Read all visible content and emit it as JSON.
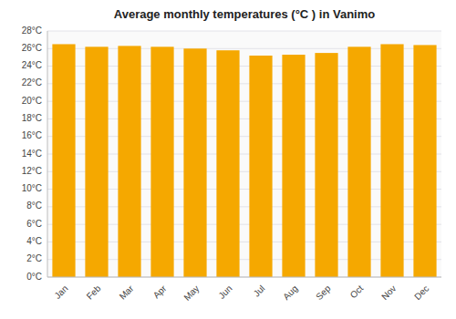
{
  "chart_data": {
    "type": "bar",
    "title": "Average monthly temperatures (°C ) in Vanimo",
    "categories": [
      "Jan",
      "Feb",
      "Mar",
      "Apr",
      "May",
      "Jun",
      "Jul",
      "Aug",
      "Sep",
      "Oct",
      "Nov",
      "Dec"
    ],
    "values": [
      26.5,
      26.2,
      26.3,
      26.2,
      26.0,
      25.8,
      25.2,
      25.3,
      25.5,
      26.2,
      26.5,
      26.4
    ],
    "color": "#F5A800",
    "ylim": [
      0,
      28
    ],
    "yticks": [
      {
        "value": 0,
        "label": "0°C"
      },
      {
        "value": 2,
        "label": "2°C"
      },
      {
        "value": 4,
        "label": "4°C"
      },
      {
        "value": 6,
        "label": "6°C"
      },
      {
        "value": 8,
        "label": "8°C"
      },
      {
        "value": 10,
        "label": "10°C"
      },
      {
        "value": 12,
        "label": "12°C"
      },
      {
        "value": 14,
        "label": "14°C"
      },
      {
        "value": 16,
        "label": "16°C"
      },
      {
        "value": 18,
        "label": "18°C"
      },
      {
        "value": 20,
        "label": "20°C"
      },
      {
        "value": 22,
        "label": "22°C"
      },
      {
        "value": 24,
        "label": "24°C"
      },
      {
        "value": 26,
        "label": "26°C"
      },
      {
        "value": 28,
        "label": "28°C"
      }
    ],
    "grid": true
  }
}
